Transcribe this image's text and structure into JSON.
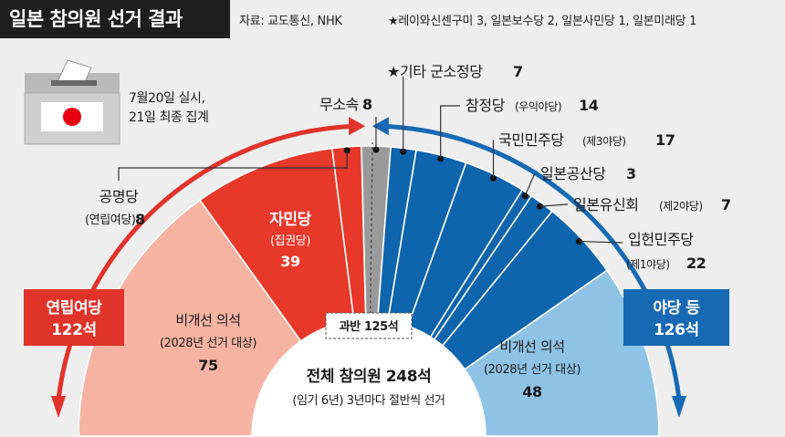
{
  "header": {
    "title": "일본 참의원 선거 결과",
    "source": "자료: 교도통신, NHK",
    "footnote": "★레이와신센구미 3, 일본보수당 2, 일본사민당 1, 일본미래당 1"
  },
  "box_note": [
    "7월20일 실시,",
    "21일 최종 집계"
  ],
  "colors": {
    "ldp_red": "#e8382a",
    "coalition_light": "#f6b3a2",
    "independent_gray": "#9a9a9a",
    "opposition_blue": "#0e64ad",
    "opposition_light": "#8ec3e6",
    "arrow_red": "#e0332a",
    "arrow_blue": "#1769b3"
  },
  "totals": {
    "coalition": [
      "연립여당",
      "122석"
    ],
    "opposition": [
      "야당 등",
      "126석"
    ],
    "majority": "과반 125석",
    "total": "전체 참의원 248석",
    "total_note": "(임기 6년) 3년마다 절반씩 선거"
  },
  "chart_data": {
    "type": "semicircle-parliament",
    "total": 248,
    "majority": 125,
    "segments": [
      {
        "party": "비개선 의석",
        "group": "coalition",
        "seats": 75,
        "note": "(2028년 선거 대상)"
      },
      {
        "party": "자민당",
        "group": "coalition",
        "seats": 39,
        "note": "(집권당)"
      },
      {
        "party": "공명당",
        "group": "coalition",
        "seats": 8,
        "note": "(연립여당)"
      },
      {
        "party": "무소속",
        "group": "independent",
        "seats": 8
      },
      {
        "party": "★기타 군소정당",
        "group": "opposition",
        "seats": 7
      },
      {
        "party": "참정당",
        "group": "opposition",
        "seats": 14,
        "note": "(우익야당)"
      },
      {
        "party": "국민민주당",
        "group": "opposition",
        "seats": 17,
        "note": "(제3야당)"
      },
      {
        "party": "일본공산당",
        "group": "opposition",
        "seats": 3
      },
      {
        "party": "일본유신회",
        "group": "opposition",
        "seats": 7,
        "note": "(제2야당)"
      },
      {
        "party": "입헌민주당",
        "group": "opposition",
        "seats": 22,
        "note": "(제1야당)"
      },
      {
        "party": "비개선 의석",
        "group": "opposition",
        "seats": 48,
        "note": "(2028년 선거 대상)"
      }
    ],
    "labels": {
      "left_uncontested": [
        "비개선 의석",
        "(2028년 선거 대상)",
        "75"
      ],
      "ldp": [
        "자민당",
        "(집권당)",
        "39"
      ],
      "komeito": [
        "공명당",
        "(연립여당)",
        "8"
      ],
      "independent": [
        "무소속",
        "8"
      ],
      "others": [
        "★기타 군소정당",
        "7"
      ],
      "sanseito": [
        "참정당",
        "(우익야당)",
        "14"
      ],
      "dpfp": [
        "국민민주당",
        "(제3야당)",
        "17"
      ],
      "jcp": [
        "일본공산당",
        "3"
      ],
      "ishin": [
        "일본유신회",
        "(제2야당)",
        "7"
      ],
      "cdp": [
        "입헌민주당",
        "(제1야당)",
        "22"
      ],
      "right_uncontested": [
        "비개선 의석",
        "(2028년 선거 대상)",
        "48"
      ]
    }
  }
}
